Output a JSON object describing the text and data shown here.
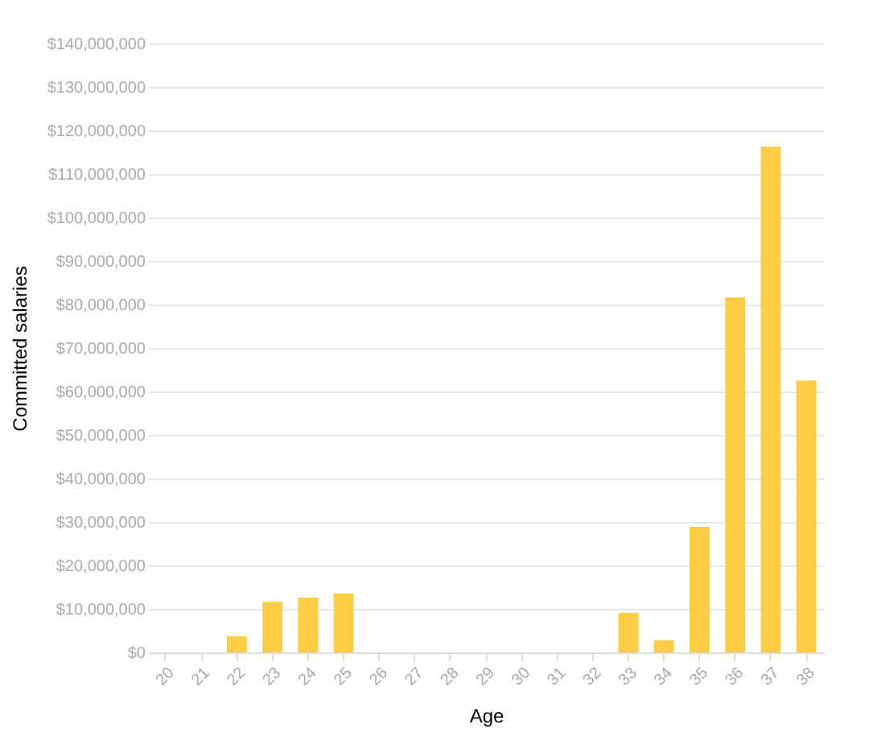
{
  "chart_data": {
    "type": "bar",
    "xlabel": "Age",
    "ylabel": "Committed salaries",
    "categories": [
      "20",
      "21",
      "22",
      "23",
      "24",
      "25",
      "26",
      "27",
      "28",
      "29",
      "30",
      "31",
      "32",
      "33",
      "34",
      "35",
      "36",
      "37",
      "38"
    ],
    "values": [
      0,
      0,
      3700000,
      11600000,
      12600000,
      13500000,
      0,
      0,
      0,
      0,
      0,
      0,
      0,
      9100000,
      2800000,
      28900000,
      81600000,
      116300000,
      62500000
    ],
    "color": "#fecd45",
    "ylim": [
      0,
      140000000
    ],
    "yticks": [
      {
        "value": 0,
        "label": "$0"
      },
      {
        "value": 10000000,
        "label": "$10,000,000"
      },
      {
        "value": 20000000,
        "label": "$20,000,000"
      },
      {
        "value": 30000000,
        "label": "$30,000,000"
      },
      {
        "value": 40000000,
        "label": "$40,000,000"
      },
      {
        "value": 50000000,
        "label": "$50,000,000"
      },
      {
        "value": 60000000,
        "label": "$60,000,000"
      },
      {
        "value": 70000000,
        "label": "$70,000,000"
      },
      {
        "value": 80000000,
        "label": "$80,000,000"
      },
      {
        "value": 90000000,
        "label": "$90,000,000"
      },
      {
        "value": 100000000,
        "label": "$100,000,000"
      },
      {
        "value": 110000000,
        "label": "$110,000,000"
      },
      {
        "value": 120000000,
        "label": "$120,000,000"
      },
      {
        "value": 130000000,
        "label": "$130,000,000"
      },
      {
        "value": 140000000,
        "label": "$140,000,000"
      }
    ],
    "grid": "y"
  }
}
